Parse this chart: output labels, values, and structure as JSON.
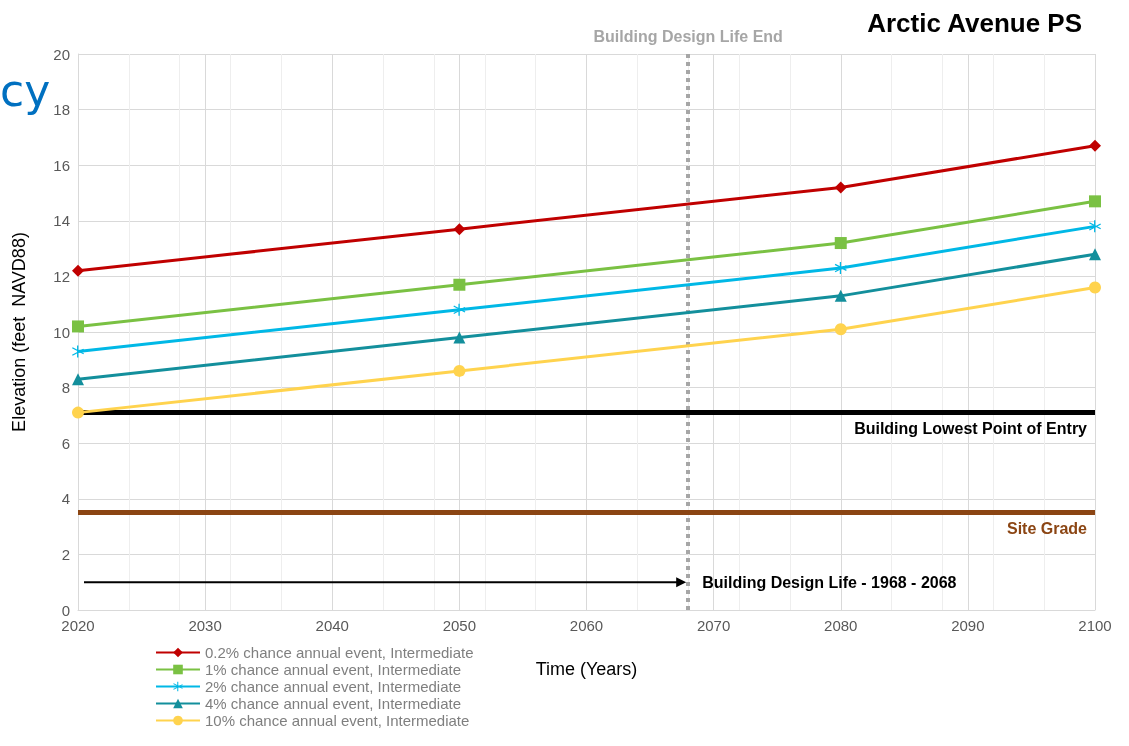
{
  "chart_data": {
    "type": "line",
    "title": "Arctic Avenue PS",
    "xlabel": "Time (Years)",
    "ylabel": "Elevation (feet  NAVD88)",
    "x": [
      2020,
      2050,
      2080,
      2100
    ],
    "series": [
      {
        "name": "0.2% chance annual event, Intermediate",
        "color": "#c00000",
        "marker": "diamond",
        "values": [
          12.2,
          13.7,
          15.2,
          16.7
        ]
      },
      {
        "name": "1% chance annual event, Intermediate",
        "color": "#7ac143",
        "marker": "square",
        "values": [
          10.2,
          11.7,
          13.2,
          14.7
        ]
      },
      {
        "name": "2% chance annual event, Intermediate",
        "color": "#00b8e6",
        "marker": "cross",
        "values": [
          9.3,
          10.8,
          12.3,
          13.8
        ]
      },
      {
        "name": "4% chance annual event, Intermediate",
        "color": "#138f9c",
        "marker": "triangle",
        "values": [
          8.3,
          9.8,
          11.3,
          12.8
        ]
      },
      {
        "name": "10% chance annual event, Intermediate",
        "color": "#ffd34e",
        "marker": "circle",
        "values": [
          7.1,
          8.6,
          10.1,
          11.6
        ]
      }
    ],
    "xlim": [
      2020,
      2100
    ],
    "xticks": [
      2020,
      2030,
      2040,
      2050,
      2060,
      2070,
      2080,
      2090,
      2100
    ],
    "ylim": [
      0,
      20
    ],
    "yticks": [
      0,
      2,
      4,
      6,
      8,
      10,
      12,
      14,
      16,
      18,
      20
    ],
    "grid": true,
    "legend": "bottom left",
    "line_style": "solid",
    "ref_lines": [
      {
        "axis": "x",
        "value": 2068,
        "label": "Building Design Life End",
        "color": "#a6a6a6",
        "line_style": "dotted"
      },
      {
        "axis": "y",
        "value": 7.1,
        "label": "Building Lowest Point of Entry",
        "color": "#000000",
        "line_style": "solid"
      },
      {
        "axis": "y",
        "value": 3.5,
        "label": "Site Grade",
        "color": "#8b4513",
        "line_style": "solid"
      }
    ],
    "annotations": [
      "cy",
      {
        "text": "Building Design Life - 1968 - 2068",
        "x": 2068,
        "y": 1
      }
    ]
  }
}
